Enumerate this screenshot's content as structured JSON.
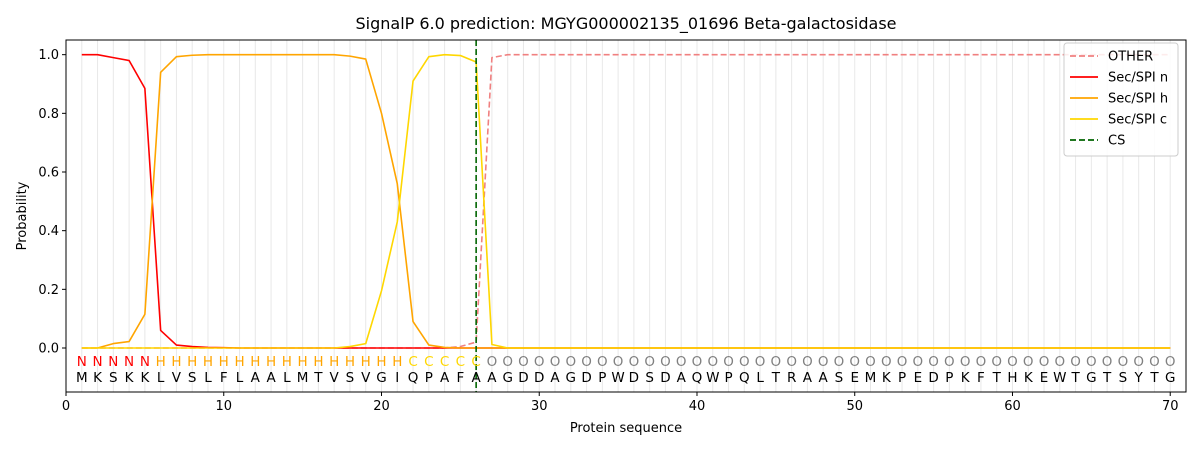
{
  "chart_data": {
    "type": "line",
    "title": "SignalP 6.0 prediction: MGYG000002135_01696 Beta-galactosidase",
    "xlabel": "Protein sequence",
    "ylabel": "Probability",
    "xlim": [
      0,
      71
    ],
    "ylim": [
      -0.15,
      1.05
    ],
    "xticks": [
      0,
      10,
      20,
      30,
      40,
      50,
      60,
      70
    ],
    "yticks": [
      0.0,
      0.2,
      0.4,
      0.6,
      0.8,
      1.0
    ],
    "xtick_labels": [
      "0",
      "10",
      "20",
      "30",
      "40",
      "50",
      "60",
      "70"
    ],
    "ytick_labels": [
      "0.0",
      "0.2",
      "0.4",
      "0.6",
      "0.8",
      "1.0"
    ],
    "legend_position": "top-right",
    "cleavage_site": 26,
    "sequence": "MKSKKLVSLFLAALMTVSVGIQPAFAAGDDAGDPWDSDAQWPQLTRAASEMKPEDPKFTHKEWTGTSYTG",
    "region_labels": "NNNNNHHHHHHHHHHHHHHHHCCCCCOOOOOOOOOOOOOOOOOOOOOOOOOOOOOOOOOOOOOOOOOOOO",
    "region_colors": {
      "N": "#ff0000",
      "H": "#ffa500",
      "C": "#ffd700",
      "O": "#808080"
    },
    "series": [
      {
        "name": "OTHER",
        "color": "#f08080",
        "dash": true,
        "x": [
          1,
          2,
          3,
          4,
          5,
          6,
          7,
          8,
          9,
          10,
          11,
          12,
          13,
          14,
          15,
          16,
          17,
          18,
          19,
          20,
          21,
          22,
          23,
          24,
          25,
          26,
          27,
          28,
          29,
          30,
          31,
          32,
          33,
          34,
          35,
          36,
          37,
          38,
          39,
          40,
          41,
          42,
          43,
          44,
          45,
          46,
          47,
          48,
          49,
          50,
          51,
          52,
          53,
          54,
          55,
          56,
          57,
          58,
          59,
          60,
          61,
          62,
          63,
          64,
          65,
          66,
          67,
          68,
          69,
          70
        ],
        "values": [
          0,
          0,
          0,
          0,
          0,
          0,
          0,
          0,
          0,
          0,
          0,
          0,
          0,
          0,
          0,
          0,
          0,
          0,
          0,
          0,
          0,
          0,
          0,
          0,
          0.005,
          0.02,
          0.99,
          1,
          1,
          1,
          1,
          1,
          1,
          1,
          1,
          1,
          1,
          1,
          1,
          1,
          1,
          1,
          1,
          1,
          1,
          1,
          1,
          1,
          1,
          1,
          1,
          1,
          1,
          1,
          1,
          1,
          1,
          1,
          1,
          1,
          1,
          1,
          1,
          1,
          1,
          1,
          1,
          1,
          1,
          1
        ]
      },
      {
        "name": "Sec/SPI n",
        "color": "#ff0000",
        "dash": false,
        "x": [
          1,
          2,
          3,
          4,
          5,
          6,
          7,
          8,
          9,
          10,
          11,
          12,
          13,
          14,
          15,
          16,
          17,
          18,
          19,
          20,
          21,
          22,
          23,
          24,
          25,
          26,
          27,
          28,
          29,
          30,
          31,
          32,
          33,
          34,
          35,
          36,
          37,
          38,
          39,
          40,
          41,
          42,
          43,
          44,
          45,
          46,
          47,
          48,
          49,
          50,
          51,
          52,
          53,
          54,
          55,
          56,
          57,
          58,
          59,
          60,
          61,
          62,
          63,
          64,
          65,
          66,
          67,
          68,
          69,
          70
        ],
        "values": [
          1,
          1,
          0.99,
          0.98,
          0.885,
          0.06,
          0.01,
          0.005,
          0.002,
          0.001,
          0,
          0,
          0,
          0,
          0,
          0,
          0,
          0,
          0,
          0,
          0,
          0,
          0,
          0,
          0,
          0,
          0,
          0,
          0,
          0,
          0,
          0,
          0,
          0,
          0,
          0,
          0,
          0,
          0,
          0,
          0,
          0,
          0,
          0,
          0,
          0,
          0,
          0,
          0,
          0,
          0,
          0,
          0,
          0,
          0,
          0,
          0,
          0,
          0,
          0,
          0,
          0,
          0,
          0,
          0,
          0,
          0,
          0,
          0,
          0
        ]
      },
      {
        "name": "Sec/SPI h",
        "color": "#ffa500",
        "dash": false,
        "x": [
          1,
          2,
          3,
          4,
          5,
          6,
          7,
          8,
          9,
          10,
          11,
          12,
          13,
          14,
          15,
          16,
          17,
          18,
          19,
          20,
          21,
          22,
          23,
          24,
          25,
          26,
          27,
          28,
          29,
          30,
          31,
          32,
          33,
          34,
          35,
          36,
          37,
          38,
          39,
          40,
          41,
          42,
          43,
          44,
          45,
          46,
          47,
          48,
          49,
          50,
          51,
          52,
          53,
          54,
          55,
          56,
          57,
          58,
          59,
          60,
          61,
          62,
          63,
          64,
          65,
          66,
          67,
          68,
          69,
          70
        ],
        "values": [
          0,
          0,
          0.015,
          0.022,
          0.115,
          0.94,
          0.993,
          0.998,
          1,
          1,
          1,
          1,
          1,
          1,
          1,
          1,
          1,
          0.995,
          0.985,
          0.8,
          0.56,
          0.09,
          0.01,
          0.002,
          0,
          0,
          0,
          0,
          0,
          0,
          0,
          0,
          0,
          0,
          0,
          0,
          0,
          0,
          0,
          0,
          0,
          0,
          0,
          0,
          0,
          0,
          0,
          0,
          0,
          0,
          0,
          0,
          0,
          0,
          0,
          0,
          0,
          0,
          0,
          0,
          0,
          0,
          0,
          0,
          0,
          0,
          0,
          0,
          0,
          0
        ]
      },
      {
        "name": "Sec/SPI c",
        "color": "#ffd700",
        "dash": false,
        "x": [
          1,
          2,
          3,
          4,
          5,
          6,
          7,
          8,
          9,
          10,
          11,
          12,
          13,
          14,
          15,
          16,
          17,
          18,
          19,
          20,
          21,
          22,
          23,
          24,
          25,
          26,
          27,
          28,
          29,
          30,
          31,
          32,
          33,
          34,
          35,
          36,
          37,
          38,
          39,
          40,
          41,
          42,
          43,
          44,
          45,
          46,
          47,
          48,
          49,
          50,
          51,
          52,
          53,
          54,
          55,
          56,
          57,
          58,
          59,
          60,
          61,
          62,
          63,
          64,
          65,
          66,
          67,
          68,
          69,
          70
        ],
        "values": [
          0,
          0,
          0,
          0,
          0,
          0,
          0,
          0,
          0,
          0,
          0,
          0,
          0,
          0,
          0,
          0,
          0,
          0.005,
          0.015,
          0.195,
          0.43,
          0.91,
          0.993,
          1,
          0.997,
          0.975,
          0.012,
          0,
          0,
          0,
          0,
          0,
          0,
          0,
          0,
          0,
          0,
          0,
          0,
          0,
          0,
          0,
          0,
          0,
          0,
          0,
          0,
          0,
          0,
          0,
          0,
          0,
          0,
          0,
          0,
          0,
          0,
          0,
          0,
          0,
          0,
          0,
          0,
          0,
          0,
          0,
          0,
          0,
          0,
          0
        ]
      }
    ],
    "legend": [
      {
        "label": "OTHER",
        "color": "#f08080",
        "dash": true
      },
      {
        "label": "Sec/SPI n",
        "color": "#ff0000",
        "dash": false
      },
      {
        "label": "Sec/SPI h",
        "color": "#ffa500",
        "dash": false
      },
      {
        "label": "Sec/SPI c",
        "color": "#ffd700",
        "dash": false
      },
      {
        "label": "CS",
        "color": "#006400",
        "dash": true
      }
    ]
  }
}
